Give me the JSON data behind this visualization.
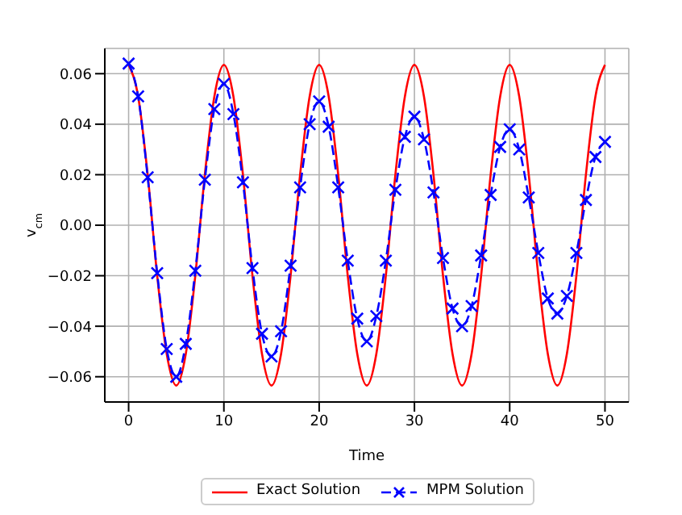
{
  "chart_data": {
    "type": "line",
    "xlabel": "Time",
    "ylabel": "v$_{cm}$",
    "x": [
      0,
      1,
      2,
      3,
      4,
      5,
      6,
      7,
      8,
      9,
      10,
      11,
      12,
      13,
      14,
      15,
      16,
      17,
      18,
      19,
      20,
      21,
      22,
      23,
      24,
      25,
      26,
      27,
      28,
      29,
      30,
      31,
      32,
      33,
      34,
      35,
      36,
      37,
      38,
      39,
      40,
      41,
      42,
      43,
      44,
      45,
      46,
      47,
      48,
      49,
      50
    ],
    "series": [
      {
        "name": "Exact Solution",
        "color": "#ff0000",
        "line_style": "solid",
        "marker": "none",
        "values": [
          0.0635,
          0.051,
          0.02,
          -0.02,
          -0.051,
          -0.0635,
          -0.051,
          -0.02,
          0.02,
          0.051,
          0.0635,
          0.051,
          0.02,
          -0.02,
          -0.051,
          -0.0635,
          -0.051,
          -0.02,
          0.02,
          0.051,
          0.0635,
          0.051,
          0.02,
          -0.02,
          -0.051,
          -0.0635,
          -0.051,
          -0.02,
          0.02,
          0.051,
          0.0635,
          0.051,
          0.02,
          -0.02,
          -0.051,
          -0.0635,
          -0.051,
          -0.02,
          0.02,
          0.051,
          0.0635,
          0.051,
          0.02,
          -0.02,
          -0.051,
          -0.0635,
          -0.051,
          -0.02,
          0.02,
          0.051,
          0.0635
        ]
      },
      {
        "name": "MPM Solution",
        "color": "#0000ff",
        "line_style": "dashed",
        "marker": "cross",
        "values": [
          0.064,
          0.051,
          0.019,
          -0.019,
          -0.049,
          -0.06,
          -0.047,
          -0.018,
          0.018,
          0.046,
          0.056,
          0.044,
          0.017,
          -0.017,
          -0.043,
          -0.052,
          -0.042,
          -0.016,
          0.015,
          0.04,
          0.049,
          0.039,
          0.015,
          -0.014,
          -0.037,
          -0.046,
          -0.036,
          -0.014,
          0.014,
          0.035,
          0.043,
          0.034,
          0.013,
          -0.013,
          -0.033,
          -0.04,
          -0.032,
          -0.012,
          0.012,
          0.031,
          0.038,
          0.03,
          0.011,
          -0.011,
          -0.029,
          -0.035,
          -0.028,
          -0.011,
          0.01,
          0.027,
          0.033
        ]
      }
    ],
    "xlim": [
      -2.5,
      52.5
    ],
    "xticks": [
      0,
      10,
      20,
      30,
      40,
      50
    ],
    "ylim": [
      -0.07,
      0.07
    ],
    "yticks": [
      {
        "value": -0.06,
        "label": "−0.06"
      },
      {
        "value": -0.04,
        "label": "−0.04"
      },
      {
        "value": -0.02,
        "label": "−0.02"
      },
      {
        "value": 0,
        "label": "0.00"
      },
      {
        "value": 0.02,
        "label": "0.02"
      },
      {
        "value": 0.04,
        "label": "0.04"
      },
      {
        "value": 0.06,
        "label": "0.06"
      }
    ],
    "grid": true,
    "legend": "bottom"
  }
}
